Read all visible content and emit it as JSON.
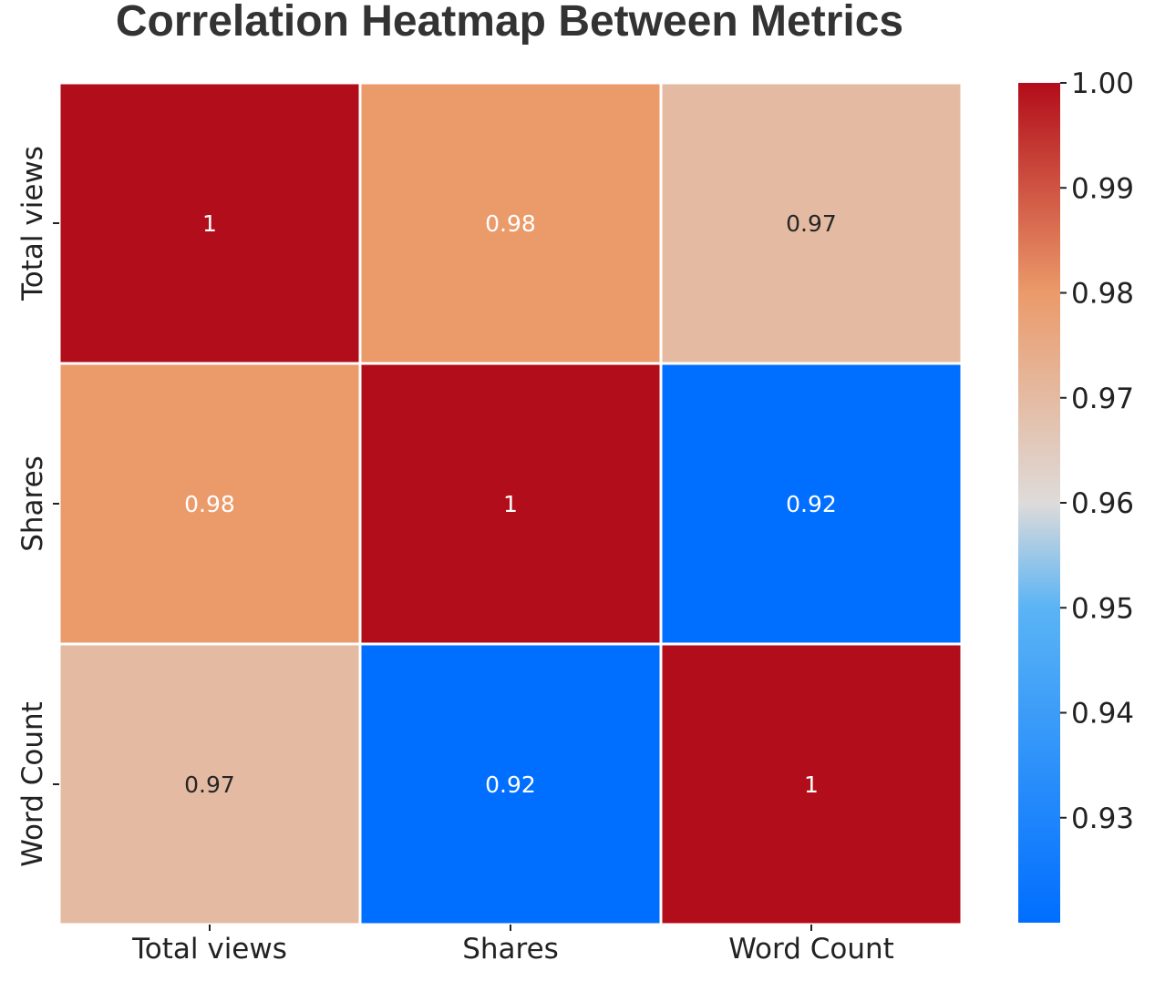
{
  "chart_data": {
    "type": "heatmap",
    "title": "Correlation Heatmap Between Metrics",
    "rows": [
      "Total views",
      "Shares",
      "Word Count"
    ],
    "columns": [
      "Total views",
      "Shares",
      "Word Count"
    ],
    "values": [
      [
        1.0,
        0.98,
        0.97
      ],
      [
        0.98,
        1.0,
        0.92
      ],
      [
        0.97,
        0.92,
        1.0
      ]
    ],
    "cell_labels": [
      [
        "1",
        "0.98",
        "0.97"
      ],
      [
        "0.98",
        "1",
        "0.92"
      ],
      [
        "0.97",
        "0.92",
        "1"
      ]
    ],
    "colorbar": {
      "range": [
        0.92,
        1.0
      ],
      "tick_values": [
        1.0,
        0.99,
        0.98,
        0.97,
        0.96,
        0.95,
        0.94,
        0.93
      ],
      "tick_labels": [
        "1.00",
        "0.99",
        "0.98",
        "0.97",
        "0.96",
        "0.95",
        "0.94",
        "0.93"
      ],
      "colors": {
        "low": "#006EFF",
        "low_mid": "#5AB4F5",
        "mid": "#DEDBDA",
        "high_mid": "#EB9A6A",
        "high": "#B20D1A"
      }
    },
    "colormap": "coolwarm-like"
  }
}
